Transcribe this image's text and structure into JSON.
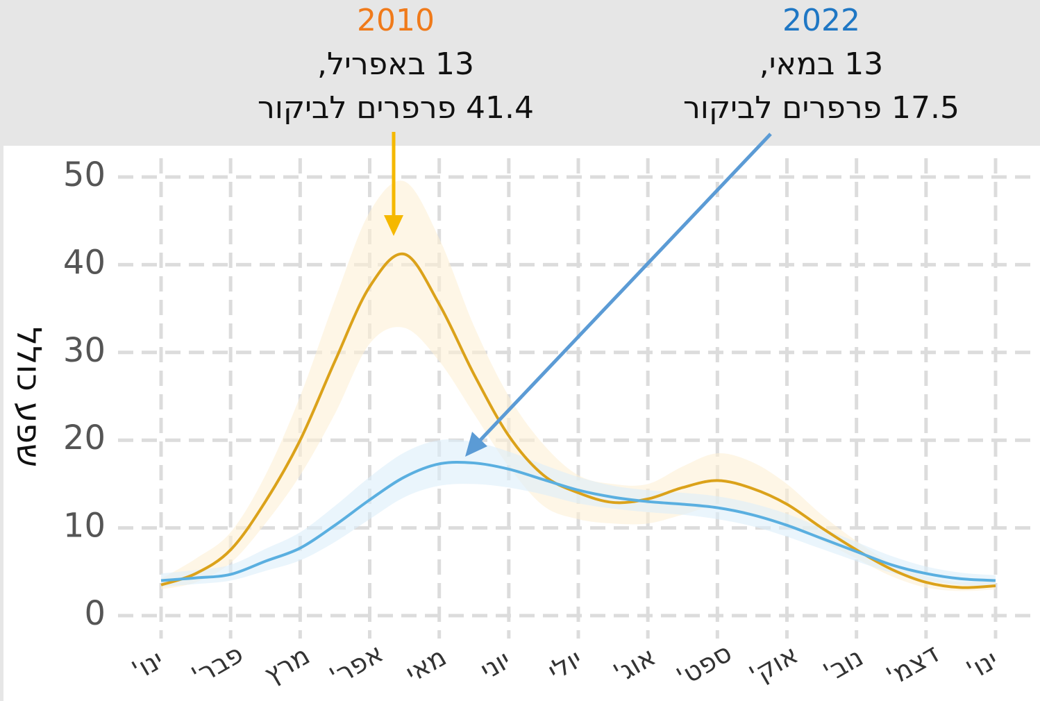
{
  "chart_data": {
    "type": "line",
    "y_label": "שפע כולל",
    "categories": [
      "ינו'",
      null,
      "פבר'",
      null,
      "מרץ",
      null,
      "אפר'",
      null,
      "מאי",
      null,
      "יוני",
      null,
      "יולי",
      null,
      "אוג'",
      null,
      "ספט'",
      null,
      "אוק'",
      null,
      "נוב'",
      null,
      "דצמ'",
      null,
      "ינו'"
    ],
    "series": [
      {
        "name": "2010",
        "color": "#dba21a",
        "band_color": "#fdf0d5",
        "values": [
          3.5,
          4.8,
          7.5,
          13,
          20,
          29,
          37.5,
          41.2,
          35.5,
          27.5,
          20.5,
          16,
          14,
          12.9,
          13.3,
          14.6,
          15.4,
          14.5,
          12.7,
          10,
          7.5,
          5.3,
          3.8,
          3.2,
          3.4
        ],
        "upper": [
          4.2,
          6.5,
          9.5,
          16,
          25,
          36,
          46,
          49.5,
          43,
          33,
          25,
          19.5,
          16,
          15,
          15,
          17,
          18.5,
          17.5,
          15,
          11.5,
          8.5,
          6,
          4.5,
          3.8,
          4
        ],
        "lower": [
          3,
          3.8,
          6,
          10.5,
          16,
          23,
          31,
          32.8,
          29,
          23,
          17,
          12.5,
          11,
          10.5,
          10.5,
          11.5,
          12.5,
          11.5,
          10.5,
          8.5,
          6.5,
          4.5,
          3.2,
          2.8,
          3
        ]
      },
      {
        "name": "2022",
        "color": "#5aafe0",
        "band_color": "#dceefa",
        "values": [
          4,
          4.3,
          4.7,
          6.2,
          7.7,
          10.3,
          13.2,
          15.8,
          17.3,
          17.4,
          16.7,
          15.5,
          14.3,
          13.5,
          13,
          12.7,
          12.3,
          11.5,
          10.3,
          8.8,
          7.3,
          5.8,
          4.8,
          4.2,
          4
        ],
        "upper": [
          4.8,
          5.2,
          5.8,
          7.6,
          9.5,
          12.5,
          15.8,
          18.6,
          20,
          19.8,
          18.7,
          17.2,
          15.8,
          14.8,
          14.3,
          14,
          13.6,
          12.8,
          11.6,
          10,
          8.4,
          6.8,
          5.6,
          4.9,
          4.6
        ],
        "lower": [
          3.3,
          3.6,
          4,
          5.1,
          6.3,
          8.4,
          11,
          13.5,
          14.8,
          15,
          14.6,
          13.8,
          12.8,
          12.2,
          11.8,
          11.5,
          11,
          10.2,
          9,
          7.6,
          6.2,
          4.9,
          4,
          3.5,
          3.4
        ]
      }
    ],
    "annotations": [
      {
        "year": "2010",
        "year_color": "#f07a1a",
        "date": "13 באפריל,",
        "text": "41.4 פרפרים לביקור"
      },
      {
        "year": "2022",
        "year_color": "#1f77c4",
        "date": "13 במאי,",
        "text": "17.5 פרפרים לביקור"
      }
    ],
    "ylim": [
      0,
      50
    ],
    "yticks": [
      0,
      10,
      20,
      30,
      40,
      50
    ],
    "grid": true
  }
}
